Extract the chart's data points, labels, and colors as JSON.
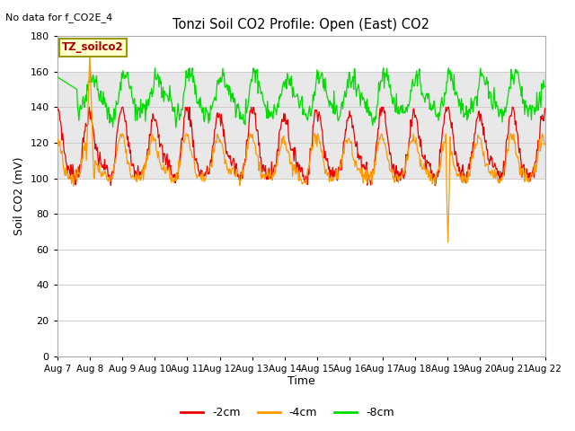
{
  "title": "Tonzi Soil CO2 Profile: Open (East) CO2",
  "subtitle": "No data for f_CO2E_4",
  "xlabel": "Time",
  "ylabel": "Soil CO2 (mV)",
  "ylim": [
    0,
    180
  ],
  "yticks": [
    0,
    20,
    40,
    60,
    80,
    100,
    120,
    140,
    160,
    180
  ],
  "legend_label": "TZ_soilco2",
  "series_labels": [
    "-2cm",
    "-4cm",
    "-8cm"
  ],
  "series_colors": [
    "#ee0000",
    "#ff9900",
    "#00dd00"
  ],
  "fig_bg_color": "#ffffff",
  "plot_bg_color": "#ffffff",
  "band_color": "#e0e0e0",
  "grid_color": "#cccccc"
}
